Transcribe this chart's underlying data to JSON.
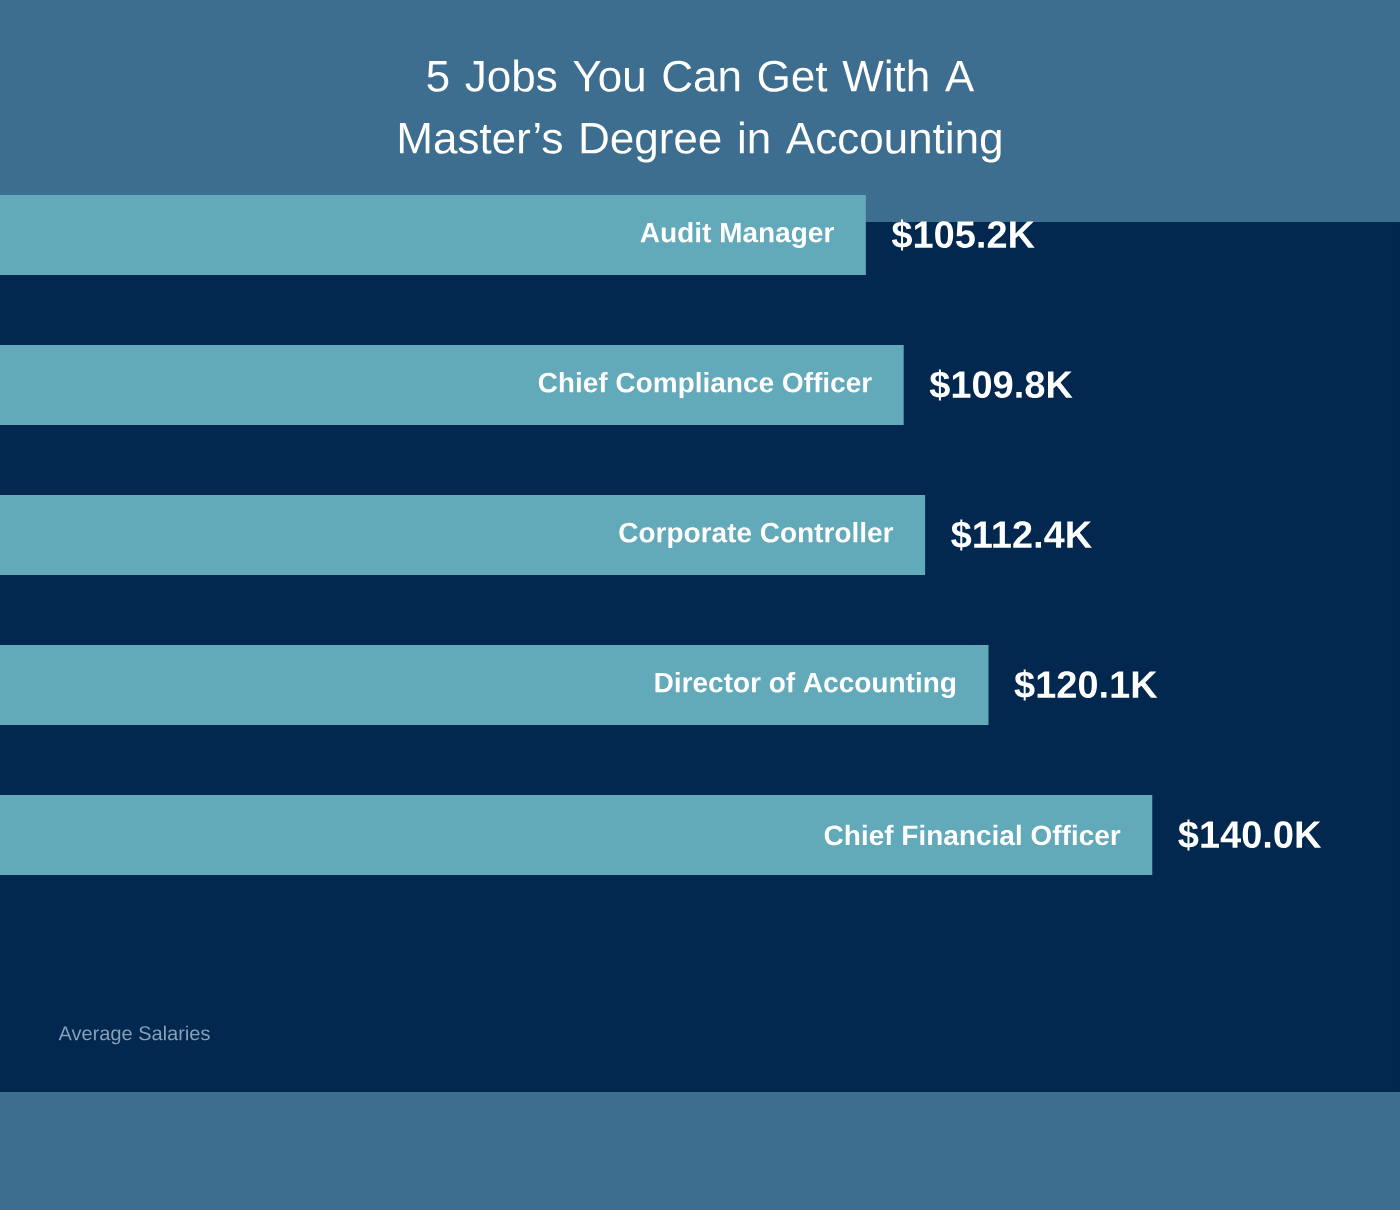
{
  "chart_data": {
    "type": "bar",
    "orientation": "horizontal",
    "title": "5 Jobs You Can Get With A Master’s Degree in Accounting",
    "categories": [
      "Audit Manager",
      "Chief Compliance Officer",
      "Corporate Controller",
      "Director of Accounting",
      "Chief Financial Officer"
    ],
    "values": [
      105.2,
      109.8,
      112.4,
      120.1,
      140.0
    ],
    "value_labels": [
      "$105.2K",
      "$109.8K",
      "$112.4K",
      "$120.1K",
      "$140.0K"
    ],
    "color": "#62a9b9",
    "tick_labels": false,
    "annotations": [
      "Average Salaries"
    ]
  }
}
